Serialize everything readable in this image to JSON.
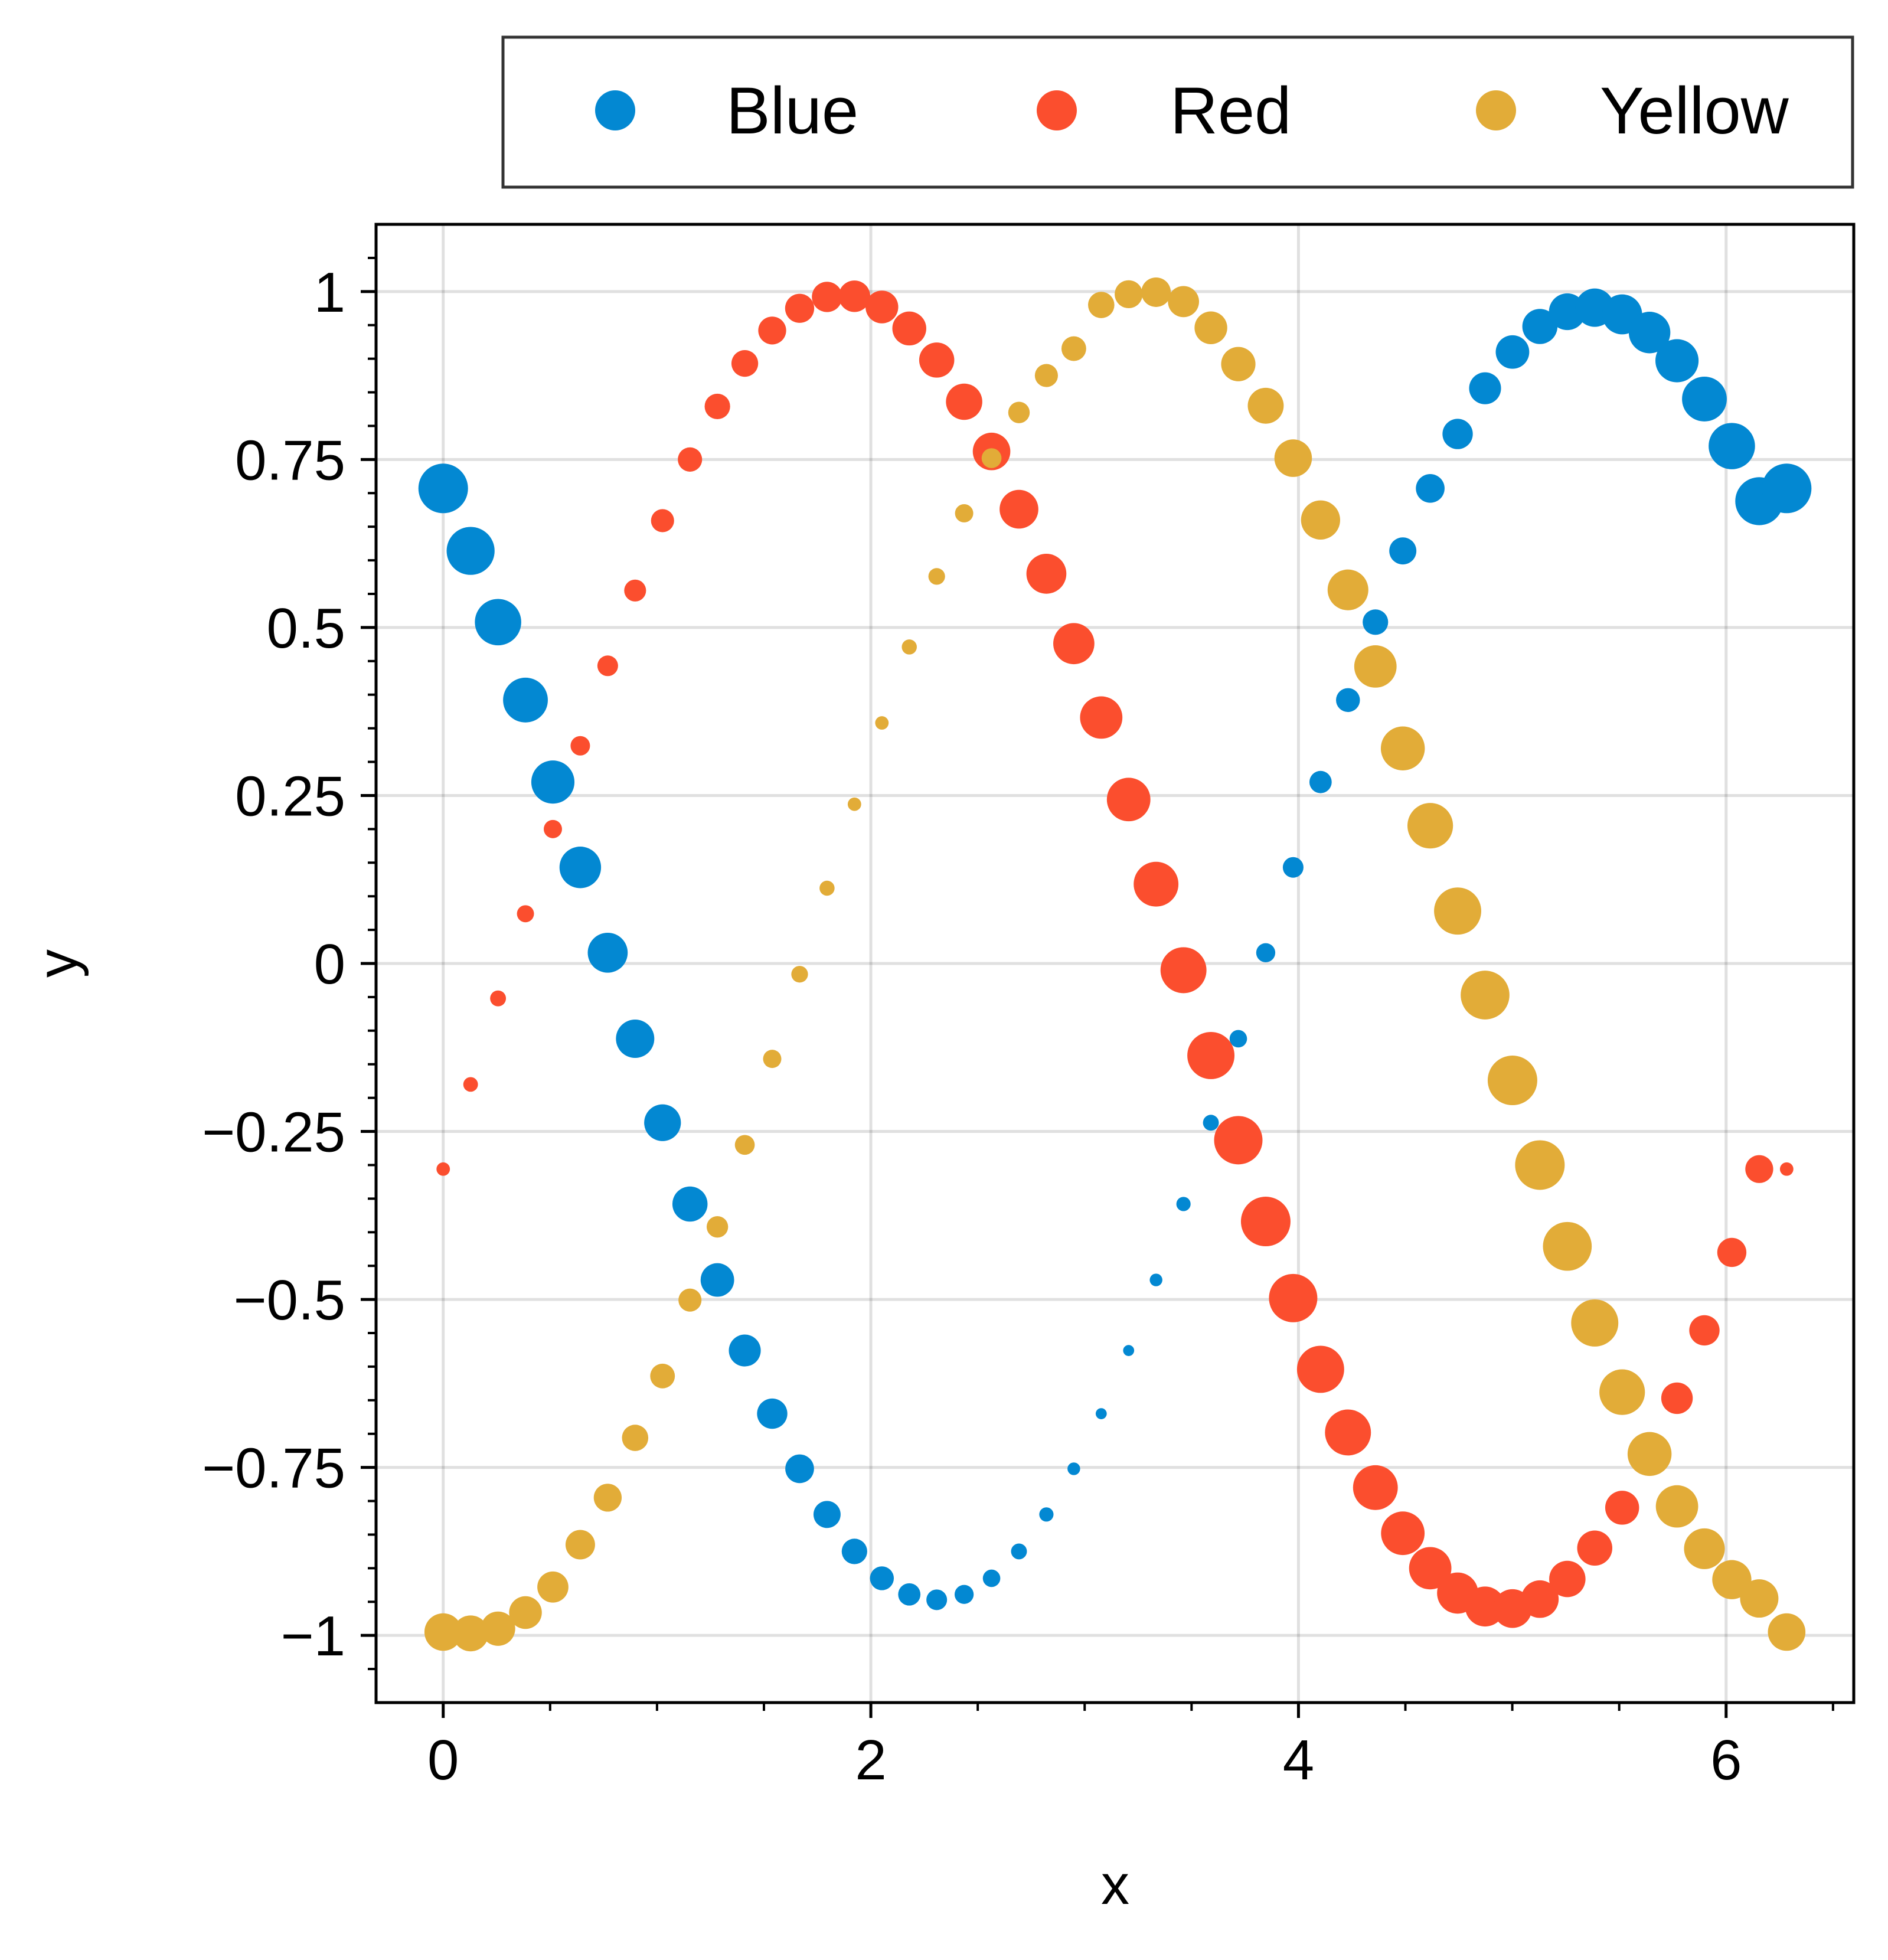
{
  "chart_data": {
    "type": "scatter",
    "title": "",
    "xlabel": "x",
    "ylabel": "y",
    "xlim": [
      -0.314,
      6.597
    ],
    "ylim": [
      -1.1,
      1.1
    ],
    "xticks": [
      0,
      2,
      4,
      6
    ],
    "xtick_labels": [
      "0",
      "2",
      "4",
      "6"
    ],
    "yticks": [
      -1,
      -0.75,
      -0.5,
      -0.25,
      0,
      0.25,
      0.5,
      0.75,
      1
    ],
    "ytick_labels": [
      "−1",
      "−0.75",
      "−0.5",
      "−0.25",
      "0",
      "0.25",
      "0.5",
      "0.75",
      "1"
    ],
    "grid": true,
    "legend_position": "top, outside plot area",
    "legend_columns": 3,
    "x": [
      0.0,
      0.1282,
      0.2565,
      0.3847,
      0.5129,
      0.6411,
      0.7694,
      0.8976,
      1.0258,
      1.1541,
      1.2823,
      1.4105,
      1.5387,
      1.667,
      1.7952,
      1.9234,
      2.0517,
      2.1799,
      2.3081,
      2.4363,
      2.5646,
      2.6928,
      2.821,
      2.9493,
      3.0775,
      3.2057,
      3.3339,
      3.4622,
      3.5904,
      3.7186,
      3.8468,
      3.9751,
      4.1033,
      4.2315,
      4.3598,
      4.488,
      4.6162,
      4.7444,
      4.8727,
      5.0009,
      5.1291,
      5.2574,
      5.3856,
      5.5138,
      5.642,
      5.7703,
      5.8985,
      6.0267,
      6.155,
      6.2832
    ],
    "series": [
      {
        "name": "Blue",
        "color": "#0388d2",
        "y": [
          0.707,
          0.614,
          0.508,
          0.392,
          0.27,
          0.143,
          0.016,
          -0.112,
          -0.237,
          -0.358,
          -0.471,
          -0.576,
          -0.67,
          -0.752,
          -0.82,
          -0.875,
          -0.915,
          -0.939,
          -0.947,
          -0.939,
          -0.915,
          -0.875,
          -0.82,
          -0.752,
          -0.67,
          -0.576,
          -0.471,
          -0.358,
          -0.237,
          -0.112,
          0.016,
          0.143,
          0.27,
          0.392,
          0.508,
          0.614,
          0.707,
          0.788,
          0.856,
          0.91,
          0.948,
          0.97,
          0.976,
          0.966,
          0.939,
          0.897,
          0.84,
          0.77,
          0.688,
          0.707
        ],
        "size": [
          1.0,
          0.96,
          0.92,
          0.88,
          0.84,
          0.8,
          0.76,
          0.72,
          0.68,
          0.64,
          0.6,
          0.56,
          0.52,
          0.48,
          0.44,
          0.4,
          0.36,
          0.32,
          0.28,
          0.24,
          0.2,
          0.16,
          0.12,
          0.08,
          0.04,
          0.04,
          0.08,
          0.12,
          0.16,
          0.2,
          0.24,
          0.28,
          0.32,
          0.36,
          0.4,
          0.44,
          0.48,
          0.52,
          0.56,
          0.6,
          0.64,
          0.68,
          0.72,
          0.76,
          0.8,
          0.84,
          0.88,
          0.92,
          0.96,
          1.0
        ]
      },
      {
        "name": "Red",
        "color": "#fb4e2e",
        "y": [
          -0.306,
          -0.18,
          -0.052,
          0.074,
          0.2,
          0.324,
          0.443,
          0.555,
          0.659,
          0.75,
          0.829,
          0.893,
          0.942,
          0.975,
          0.992,
          0.993,
          0.977,
          0.945,
          0.898,
          0.836,
          0.762,
          0.676,
          0.58,
          0.476,
          0.366,
          0.244,
          0.118,
          -0.01,
          -0.137,
          -0.263,
          -0.384,
          -0.498,
          -0.604,
          -0.698,
          -0.78,
          -0.848,
          -0.9,
          -0.937,
          -0.957,
          -0.96,
          -0.946,
          -0.916,
          -0.87,
          -0.81,
          -0.736,
          -0.647,
          -0.546,
          -0.43,
          -0.306,
          -0.306
        ],
        "size": [
          0.1,
          0.13,
          0.16,
          0.19,
          0.22,
          0.25,
          0.28,
          0.31,
          0.34,
          0.37,
          0.4,
          0.43,
          0.46,
          0.49,
          0.52,
          0.55,
          0.58,
          0.61,
          0.64,
          0.67,
          0.7,
          0.73,
          0.76,
          0.79,
          0.82,
          0.85,
          0.88,
          0.91,
          0.94,
          0.97,
          1.0,
          0.97,
          0.94,
          0.91,
          0.88,
          0.85,
          0.82,
          0.79,
          0.76,
          0.73,
          0.7,
          0.67,
          0.64,
          0.61,
          0.58,
          0.55,
          0.52,
          0.49,
          0.46,
          0.1
        ]
      },
      {
        "name": "Yellow",
        "color": "#e2ac38",
        "y": [
          -0.995,
          -0.997,
          -0.99,
          -0.966,
          -0.928,
          -0.865,
          -0.795,
          -0.706,
          -0.614,
          -0.501,
          -0.392,
          -0.27,
          -0.142,
          -0.016,
          0.112,
          0.237,
          0.358,
          0.471,
          0.576,
          0.67,
          0.752,
          0.82,
          0.875,
          0.915,
          0.98,
          0.996,
          0.999,
          0.985,
          0.946,
          0.892,
          0.83,
          0.752,
          0.66,
          0.556,
          0.442,
          0.32,
          0.205,
          0.078,
          -0.047,
          -0.174,
          -0.3,
          -0.421,
          -0.535,
          -0.638,
          -0.73,
          -0.808,
          -0.871,
          -0.917,
          -0.945,
          -0.995
        ],
        "size": [
          0.7,
          0.66,
          0.62,
          0.58,
          0.54,
          0.5,
          0.46,
          0.42,
          0.38,
          0.34,
          0.3,
          0.26,
          0.22,
          0.18,
          0.14,
          0.1,
          0.1,
          0.14,
          0.18,
          0.22,
          0.26,
          0.3,
          0.34,
          0.38,
          0.42,
          0.46,
          0.5,
          0.54,
          0.58,
          0.62,
          0.66,
          0.7,
          0.74,
          0.78,
          0.82,
          0.86,
          0.9,
          0.94,
          0.98,
          1.0,
          1.0,
          0.98,
          0.94,
          0.9,
          0.86,
          0.82,
          0.78,
          0.74,
          0.72,
          0.7
        ]
      }
    ]
  }
}
